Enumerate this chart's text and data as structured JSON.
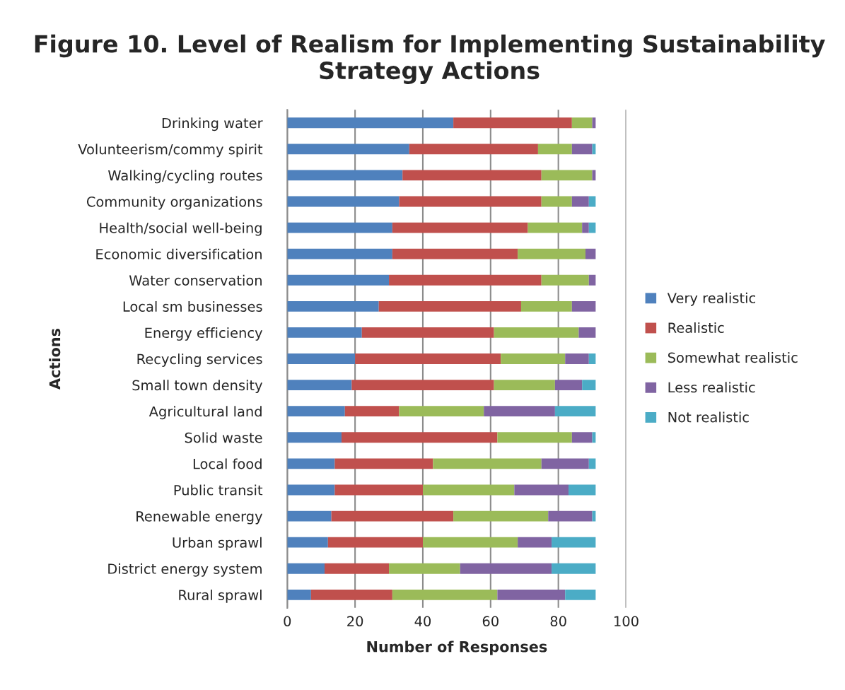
{
  "chart_data": {
    "type": "bar",
    "orientation": "horizontal",
    "stacked": true,
    "title": "Figure 10. Level of Realism for Implementing Sustainability Strategy Actions",
    "xlabel": "Number of Responses",
    "ylabel": "Actions",
    "categories": [
      "Drinking water",
      "Volunteerism/commy spirit",
      "Walking/cycling routes",
      "Community organizations",
      "Health/social well-being",
      "Economic diversification",
      "Water conservation",
      "Local sm businesses",
      "Energy efficiency",
      "Recycling services",
      "Small town density",
      "Agricultural land",
      "Solid waste",
      "Local food",
      "Public transit",
      "Renewable energy",
      "Urban sprawl",
      "District energy system",
      "Rural sprawl"
    ],
    "series": [
      {
        "name": "Very realistic",
        "color": "#4f81bd",
        "values": [
          49,
          36,
          34,
          33,
          31,
          31,
          30,
          27,
          22,
          20,
          19,
          17,
          16,
          14,
          14,
          13,
          12,
          11,
          7
        ]
      },
      {
        "name": "Realistic",
        "color": "#c0504d",
        "values": [
          35,
          38,
          41,
          42,
          40,
          37,
          45,
          42,
          39,
          43,
          42,
          16,
          46,
          29,
          26,
          36,
          28,
          19,
          24
        ]
      },
      {
        "name": "Somewhat realistic",
        "color": "#9bbb59",
        "values": [
          6,
          10,
          15,
          9,
          16,
          20,
          14,
          15,
          25,
          19,
          18,
          25,
          22,
          32,
          27,
          28,
          28,
          21,
          31
        ]
      },
      {
        "name": "Less realistic",
        "color": "#8064a2",
        "values": [
          1,
          6,
          1,
          5,
          2,
          3,
          2,
          7,
          5,
          7,
          8,
          21,
          6,
          14,
          16,
          13,
          10,
          27,
          20
        ]
      },
      {
        "name": "Not realistic",
        "color": "#4bacc6",
        "values": [
          0,
          1,
          0,
          2,
          2,
          0,
          0,
          0,
          0,
          2,
          4,
          12,
          1,
          2,
          8,
          1,
          13,
          13,
          9
        ]
      }
    ],
    "xlim": [
      0,
      100
    ],
    "xticks": [
      0,
      20,
      40,
      60,
      80,
      100
    ],
    "grid": "x",
    "legend": "right"
  }
}
